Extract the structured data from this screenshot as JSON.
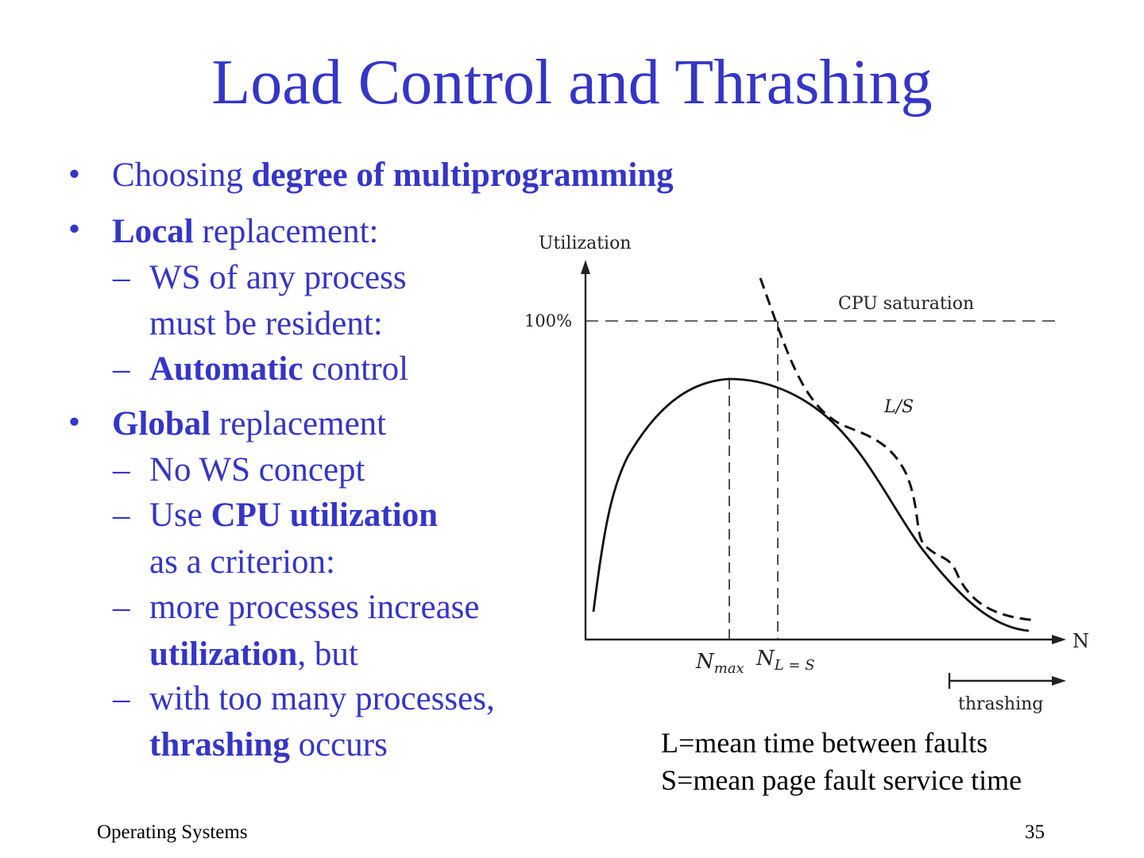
{
  "slide": {
    "title": "Load Control and Thrashing",
    "bullets": {
      "b1": {
        "prefix": "Choosing ",
        "bold": "degree of multiprogramming"
      },
      "b2": {
        "bold": "Local",
        "rest": " replacement:",
        "sub1_line1": "WS of any process",
        "sub1_line2": "must be resident:",
        "sub2_bold": "Automatic",
        "sub2_rest": " control"
      },
      "b3": {
        "bold": "Global",
        "rest": " replacement",
        "sub1": "No WS concept",
        "sub2_prefix": "Use ",
        "sub2_bold": "CPU utilization",
        "sub2_line2": "as a criterion:",
        "sub3_line1": "more processes increase",
        "sub3_line2_bold": "utilization",
        "sub3_line2_rest": ", but",
        "sub4_line1": "with too many processes,",
        "sub4_line2_bold": "thrashing",
        "sub4_line2_rest": " occurs"
      }
    },
    "markers": {
      "bullet": "•",
      "dash": "–"
    },
    "definitions": {
      "l_def": "L=mean time between faults",
      "s_def": "S=mean page fault service time"
    },
    "footer": {
      "left": "Operating Systems",
      "right": "35"
    },
    "colors": {
      "accent": "#3535c8",
      "text": "#000000"
    }
  },
  "chart_data": {
    "type": "line",
    "ylabel": "Utilization",
    "xlabel": "N",
    "y_reference": {
      "label": "100%",
      "annotation": "CPU saturation",
      "style": "dashed"
    },
    "series": [
      {
        "name": "",
        "style": "solid",
        "description_values": "rises to a maximum at N_max, then falls"
      },
      {
        "name": "L/S",
        "style": "dashed"
      }
    ],
    "x_markers": [
      {
        "label_main": "N",
        "label_sub": "max"
      },
      {
        "label_main": "N",
        "label_sub": "L = S"
      }
    ],
    "region": {
      "label": "thrashing",
      "arrow": "right"
    }
  }
}
